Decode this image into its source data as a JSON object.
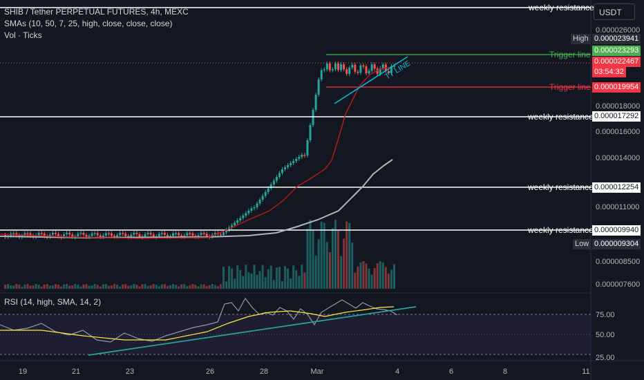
{
  "header": {
    "title": "SHIB / Tether PERPETUAL FUTURES, 4h, MEXC",
    "sma_legend": "SMAs (10, 50, 7, 25, high, close, close, close)",
    "vol_legend": "Vol · Ticks"
  },
  "currency_button": "USDT",
  "price_axis": {
    "ticks": [
      "0.000026000",
      "0.000018000",
      "0.000016000",
      "0.000014000",
      "0.000011000",
      "0.000008500",
      "0.000007600"
    ],
    "high_label": "High",
    "high_value": "0.000023941",
    "low_label": "Low",
    "low_value": "0.000009304",
    "last_price": "0.000022467",
    "countdown": "03:54:32"
  },
  "lines": {
    "trigger_top": {
      "label": "Trigger line",
      "value": "0.000023293"
    },
    "trigger_bottom": {
      "label": "Trigger line",
      "value": "0.000019954"
    },
    "weekly_1": {
      "label": "weekly resistance",
      "value": ""
    },
    "weekly_2": {
      "label": "weekly resistance",
      "value": "0.000017292"
    },
    "weekly_3": {
      "label": "weekly resistance",
      "value": "0.000012254"
    },
    "weekly_4": {
      "label": "weekly resistance",
      "value": "0.000009940"
    },
    "tt_line": "TT LINE"
  },
  "rsi": {
    "legend": "RSI (14, high, SMA, 14, 2)",
    "ticks": [
      "75.00",
      "50.00",
      "25.00"
    ]
  },
  "time_axis": [
    "19",
    "21",
    "23",
    "26",
    "28",
    "Mar",
    "4",
    "6",
    "8",
    "11"
  ],
  "colors": {
    "background": "#131722",
    "up": "#26a69a",
    "down": "#ef5350",
    "trigger_green": "#4caf50",
    "trigger_red": "#f23645",
    "rsi_line": "#9598a1",
    "rsi_sma": "#ffeb3b",
    "trend_line": "#00bcd4"
  }
}
